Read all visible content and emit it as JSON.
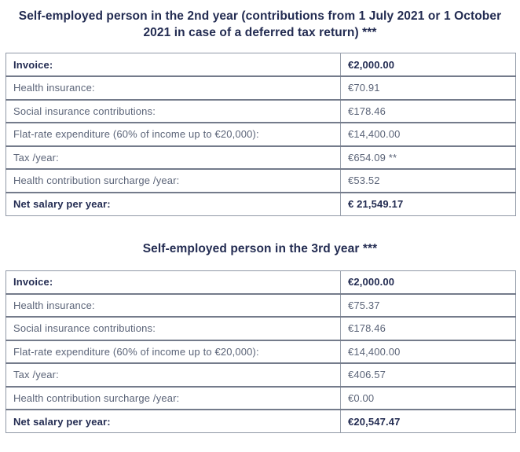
{
  "colors": {
    "title_navy": "#232c52",
    "body_text": "#5b6478",
    "border_dark": "#747b8b",
    "border_light": "#9aa1ad",
    "background": "#ffffff"
  },
  "sections": [
    {
      "title": "Self-employed person in the 2nd year (contributions from 1 July 2021 or 1 October 2021 in case of a deferred tax return) ***",
      "rows": [
        {
          "label": "Invoice:",
          "value": "€2,000.00",
          "emphasis": true
        },
        {
          "label": "Health insurance:",
          "value": "€70.91",
          "emphasis": false
        },
        {
          "label": "Social insurance contributions:",
          "value": "€178.46",
          "emphasis": false
        },
        {
          "label": "Flat-rate expenditure (60% of income up to €20,000):",
          "value": "€14,400.00",
          "emphasis": false
        },
        {
          "label": "Tax /year:",
          "value": "€654.09 **",
          "emphasis": false
        },
        {
          "label": "Health contribution surcharge /year:",
          "value": "€53.52",
          "emphasis": false
        },
        {
          "label": "Net salary per year:",
          "value": "€ 21,549.17",
          "emphasis": true
        }
      ]
    },
    {
      "title": "Self-employed person in the 3rd year ***",
      "rows": [
        {
          "label": "Invoice:",
          "value": "€2,000.00",
          "emphasis": true
        },
        {
          "label": "Health insurance:",
          "value": "€75.37",
          "emphasis": false
        },
        {
          "label": "Social insurance contributions:",
          "value": "€178.46",
          "emphasis": false
        },
        {
          "label": "Flat-rate expenditure (60% of income up to €20,000):",
          "value": "€14,400.00",
          "emphasis": false
        },
        {
          "label": "Tax /year:",
          "value": "€406.57",
          "emphasis": false
        },
        {
          "label": "Health contribution surcharge /year:",
          "value": "€0.00",
          "emphasis": false
        },
        {
          "label": "Net salary per year:",
          "value": "€20,547.47",
          "emphasis": true
        }
      ]
    }
  ]
}
